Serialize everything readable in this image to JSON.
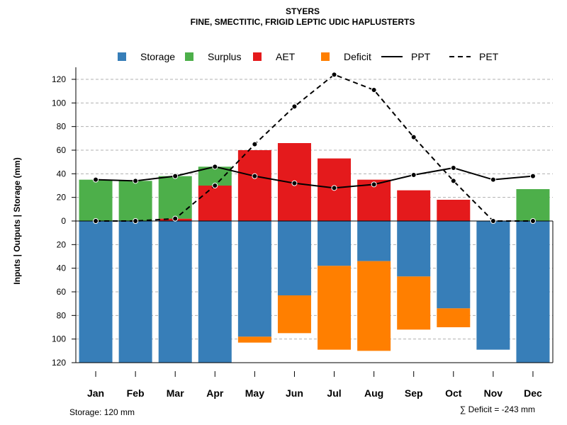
{
  "chart_data": {
    "type": "bar",
    "title": "STYERS",
    "subtitle": "FINE, SMECTITIC, FRIGID LEPTIC UDIC HAPLUSTERTS",
    "ylabel": "Inputs | Outputs | Storage    (mm)",
    "ylim": [
      -120,
      130
    ],
    "yticks": [
      120,
      100,
      80,
      60,
      40,
      20,
      0,
      20,
      40,
      60,
      80,
      100,
      120
    ],
    "ytick_values": [
      120,
      100,
      80,
      60,
      40,
      20,
      0,
      -20,
      -40,
      -60,
      -80,
      -100,
      -120
    ],
    "categories": [
      "Jan",
      "Feb",
      "Mar",
      "Apr",
      "May",
      "Jun",
      "Jul",
      "Aug",
      "Sep",
      "Oct",
      "Nov",
      "Dec"
    ],
    "series": [
      {
        "name": "Storage",
        "color": "#377EB8",
        "values": [
          120,
          120,
          120,
          120,
          98,
          63,
          38,
          34,
          47,
          74,
          109,
          120
        ]
      },
      {
        "name": "Surplus",
        "color": "#4DAF4A",
        "values": [
          35,
          34,
          36,
          16,
          0,
          0,
          0,
          0,
          0,
          0,
          0,
          27
        ]
      },
      {
        "name": "AET",
        "color": "#E41A1C",
        "values": [
          0,
          0,
          2,
          30,
          60,
          66,
          53,
          35,
          26,
          18,
          0,
          0
        ]
      },
      {
        "name": "Deficit",
        "color": "#FF7F00",
        "values": [
          0,
          0,
          0,
          0,
          5,
          32,
          71,
          76,
          45,
          16,
          0,
          0
        ]
      },
      {
        "name": "PPT",
        "line": "solid",
        "values": [
          35,
          34,
          38,
          46,
          38,
          32,
          28,
          31,
          39,
          45,
          35,
          38
        ]
      },
      {
        "name": "PET",
        "line": "dashed",
        "values": [
          0,
          0,
          2,
          30,
          65,
          97,
          124,
          111,
          71,
          34,
          0,
          0
        ]
      }
    ],
    "legend": [
      "Storage",
      "Surplus",
      "AET",
      "Deficit",
      "PPT",
      "PET"
    ],
    "legend_position": "top",
    "grid": true
  },
  "notes": {
    "storage": "Storage: 120 mm",
    "deficit": "∑ Deficit = -243 mm"
  }
}
